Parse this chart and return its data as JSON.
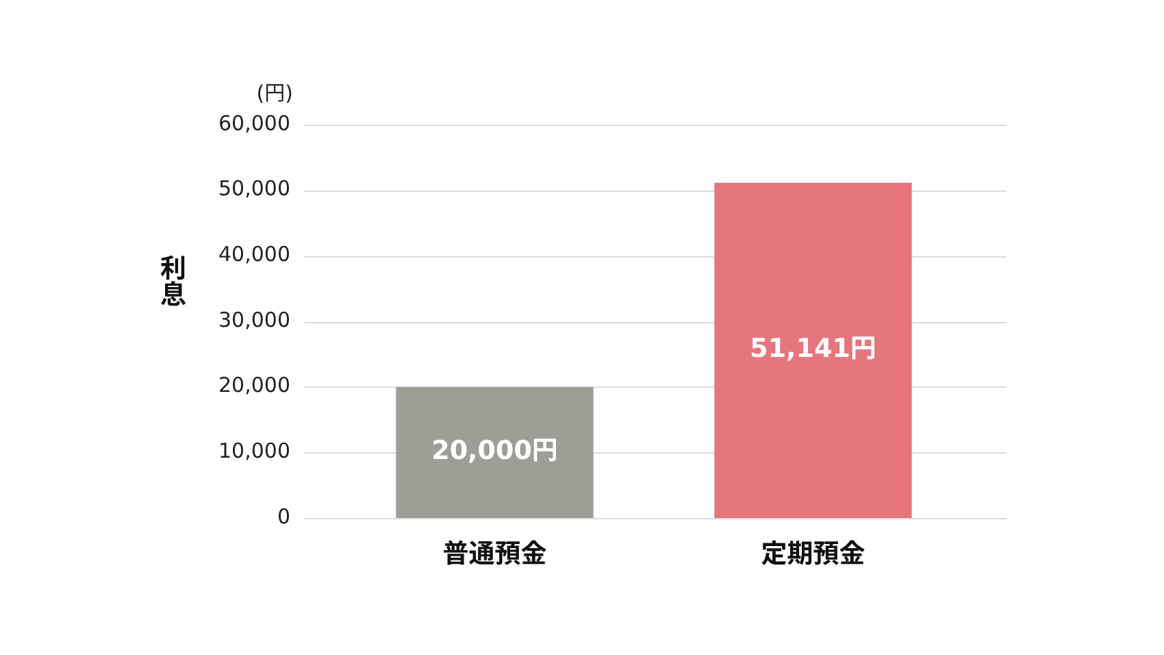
{
  "chart_data": {
    "type": "bar",
    "ylabel": "利息",
    "annotations": [
      "(円)"
    ],
    "categories": [
      "普通預金",
      "定期預金"
    ],
    "values": [
      20000,
      51141
    ],
    "colors": [
      "#9d9e96",
      "#e7757e"
    ],
    "ylim": [
      0,
      60000
    ],
    "yticks": [
      {
        "value": 0,
        "label": "0"
      },
      {
        "value": 10000,
        "label": "10,000"
      },
      {
        "value": 20000,
        "label": "20,000"
      },
      {
        "value": 30000,
        "label": "30,000"
      },
      {
        "value": 40000,
        "label": "40,000"
      },
      {
        "value": 50000,
        "label": "50,000"
      },
      {
        "value": 60000,
        "label": "60,000"
      }
    ],
    "grid": "y",
    "value_labels": [
      "20,000円",
      "51,141円"
    ]
  }
}
